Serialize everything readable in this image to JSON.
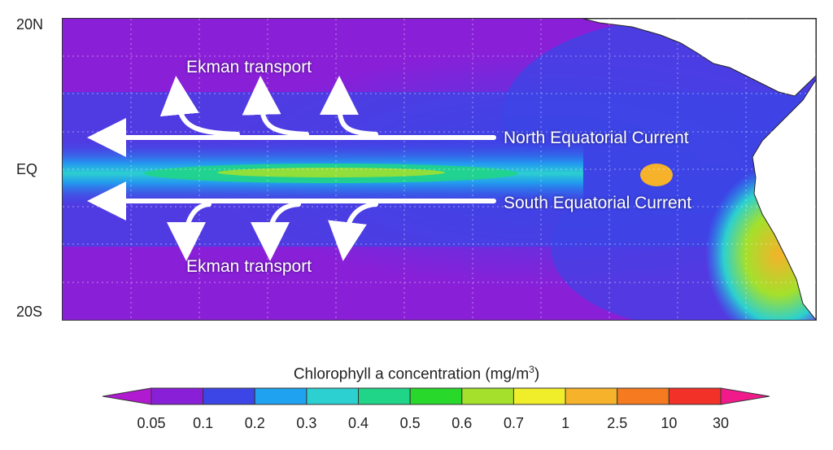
{
  "lat_labels": {
    "north": "20N",
    "equator": "EQ",
    "south": "20S"
  },
  "annotations": {
    "ekman_top": "Ekman transport",
    "ekman_bottom": "Ekman transport",
    "north_current": "North Equatorial Current",
    "south_current": "South Equatorial Current"
  },
  "colorbar": {
    "title": "Chlorophyll a concentration (mg/m",
    "title_sup": "3",
    "title_close": ")",
    "ticks": [
      "0.05",
      "0.1",
      "0.2",
      "0.3",
      "0.4",
      "0.5",
      "0.6",
      "0.7",
      "1",
      "2.5",
      "10",
      "30"
    ],
    "colors": [
      "#b01ad0",
      "#8a1fd8",
      "#3c45e6",
      "#1fa3f0",
      "#2cd0d0",
      "#20d488",
      "#28d82a",
      "#a4e02c",
      "#f0ee2a",
      "#f5b22a",
      "#f57a20",
      "#f23228",
      "#f01a8a"
    ]
  },
  "colors": {
    "ocean_low": "#8a1fd8",
    "ocean_mid": "#3c45e6",
    "upwelling": "#2cd0d0",
    "land": "#ffffff",
    "arrows": "#ffffff"
  }
}
